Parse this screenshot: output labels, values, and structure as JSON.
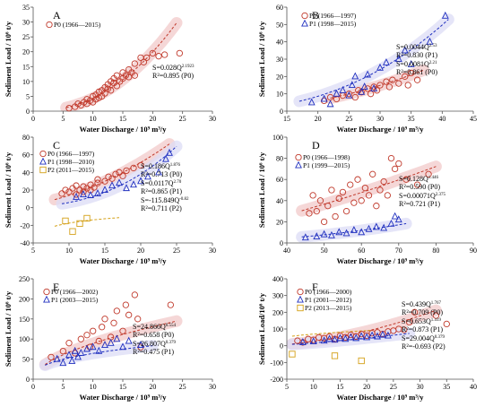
{
  "colors": {
    "p0": "#c0392b",
    "p1": "#1f2fbf",
    "p2": "#d4a017",
    "band_p0": "#f2c9c9",
    "band_p1": "#dcdcf5",
    "axis": "#555555"
  },
  "chart_data": [
    {
      "id": "A",
      "type": "scatter",
      "letter": "A",
      "xlabel": "Water Discharge / 10⁹ m³/y",
      "ylabel": "Sediment Load / 10⁶ t/y",
      "xlim": [
        0,
        30
      ],
      "ylim": [
        0,
        35
      ],
      "xticks": [
        "0",
        "5",
        "10",
        "15",
        "20",
        "25",
        "30"
      ],
      "yticks": [
        "0",
        "5",
        "10",
        "15",
        "20",
        "25",
        "30",
        "35"
      ],
      "xtick_values": [
        0,
        5,
        10,
        15,
        20,
        25,
        30
      ],
      "ytick_values": [
        0,
        5,
        10,
        15,
        20,
        25,
        30,
        35
      ],
      "legend": [
        {
          "label": "P0 (1966—2015)",
          "marker": "circle",
          "color": "p0"
        }
      ],
      "equations": [
        {
          "base": "S=0.028Q",
          "exp": "2.1923",
          "r2": "R²=0.895 (P0)"
        }
      ],
      "series": [
        {
          "name": "P0",
          "marker": "circle",
          "color": "p0",
          "coef": 0.028,
          "exp": 2.1923,
          "fit_x": [
            5.5,
            24
          ],
          "x": [
            6,
            7,
            7.5,
            8,
            8.5,
            9,
            9,
            9.5,
            10,
            10,
            10.5,
            10.5,
            11,
            11,
            11.5,
            11.5,
            12,
            12,
            12.5,
            12.5,
            13,
            13,
            13.5,
            13.5,
            14,
            14,
            14.5,
            15,
            15,
            15.5,
            16,
            16,
            16.5,
            17,
            17,
            18,
            18.5,
            19,
            20,
            21,
            22,
            24.5
          ],
          "y": [
            1,
            1.5,
            2.5,
            2,
            3,
            2.5,
            4,
            3.5,
            5,
            3,
            5.5,
            4,
            4.5,
            6.5,
            5,
            7,
            6,
            8,
            7.5,
            9,
            7,
            10,
            9.5,
            11,
            8.5,
            12,
            10,
            11,
            13,
            12,
            11.5,
            14,
            13,
            12,
            16,
            18,
            16.5,
            18,
            19.5,
            18.5,
            19,
            19.5
          ]
        }
      ]
    },
    {
      "id": "B",
      "type": "scatter",
      "letter": "B",
      "xlabel": "Water Discharge / 10⁹ m³/y",
      "ylabel": "Sediment Load / 10⁶ t/y",
      "xlim": [
        15,
        45
      ],
      "ylim": [
        0,
        60
      ],
      "xticks": [
        "15",
        "20",
        "25",
        "30",
        "35",
        "40",
        "45"
      ],
      "yticks": [
        "0",
        "10",
        "20",
        "30",
        "40",
        "50",
        "60"
      ],
      "xtick_values": [
        15,
        20,
        25,
        30,
        35,
        40,
        45
      ],
      "ytick_values": [
        0,
        10,
        20,
        30,
        40,
        50,
        60
      ],
      "legend": [
        {
          "label": "P0 (1966—1997)",
          "marker": "circle",
          "color": "p0"
        },
        {
          "label": "P1 (1998—2015)",
          "marker": "triangle",
          "color": "p1"
        }
      ],
      "equations": [
        {
          "base": "S=0.0044Q",
          "exp": "2.53",
          "r2": "R²=0.830 (P1)"
        },
        {
          "base": "S=0.0081Q",
          "exp": "2.21",
          "r2": "R²=0.861 (P0)"
        }
      ],
      "series": [
        {
          "name": "P0",
          "marker": "circle",
          "color": "p0",
          "coef": 0.0081,
          "exp": 2.21,
          "fit_x": [
            22,
            37
          ],
          "x": [
            21,
            22,
            23,
            24,
            25,
            26,
            26.5,
            27,
            28,
            28.5,
            29,
            29.5,
            30,
            31,
            31.5,
            32,
            33,
            34,
            34.5,
            35,
            36
          ],
          "y": [
            6,
            8,
            7,
            9,
            10,
            8,
            12,
            11,
            13,
            10,
            14,
            12,
            15,
            17,
            14,
            18,
            16,
            20,
            15,
            22,
            18
          ]
        },
        {
          "name": "P1",
          "marker": "triangle",
          "color": "p1",
          "coef": 0.0044,
          "exp": 2.53,
          "fit_x": [
            17,
            41
          ],
          "x": [
            19,
            21,
            22,
            23,
            24,
            25,
            25.5,
            26,
            27,
            27.5,
            28,
            29,
            30,
            31,
            33,
            34,
            35,
            38,
            40.5
          ],
          "y": [
            5,
            7,
            4,
            10,
            12,
            9,
            15,
            20,
            11,
            14,
            21,
            13,
            25,
            28,
            30,
            35,
            27,
            40,
            55
          ]
        }
      ]
    },
    {
      "id": "C",
      "type": "scatter",
      "letter": "C",
      "xlabel": "Water Discharge / 10⁹ m³/y",
      "ylabel": "Sediment Load / 10⁶ t/y",
      "xlim": [
        5,
        30
      ],
      "ylim": [
        -40,
        80
      ],
      "xticks": [
        "5",
        "10",
        "15",
        "20",
        "25",
        "30"
      ],
      "yticks": [
        "-40",
        "-20",
        "0",
        "20",
        "40",
        "60",
        "80"
      ],
      "xtick_values": [
        5,
        10,
        15,
        20,
        25,
        30
      ],
      "ytick_values": [
        -40,
        -20,
        0,
        20,
        40,
        60,
        80
      ],
      "legend": [
        {
          "label": "P0 (1966—1997)",
          "marker": "circle",
          "color": "p0"
        },
        {
          "label": "P1 (1998—2010)",
          "marker": "triangle",
          "color": "p1"
        },
        {
          "label": "P2 (2011—2015)",
          "marker": "square",
          "color": "p2"
        }
      ],
      "equations": [
        {
          "base": "S=0.186Q",
          "exp": "1.876",
          "r2": "R²=0.713 (P0)"
        },
        {
          "base": "S=0.0117Q",
          "exp": "2.70",
          "r2": "R²=0.865 (P1)"
        },
        {
          "base": "S=-115.849Q",
          "exp": "-0.82",
          "r2": "R²=0.711 (P2)"
        }
      ],
      "series": [
        {
          "name": "P0",
          "marker": "circle",
          "color": "p0",
          "coef": 0.186,
          "exp": 1.876,
          "fit_x": [
            8,
            24
          ],
          "x": [
            9,
            9.5,
            10,
            10.5,
            11,
            11,
            11.5,
            12,
            12,
            12.5,
            13,
            13,
            13.5,
            14,
            14,
            15,
            15.5,
            16,
            16.5,
            17,
            17.5,
            18,
            19,
            20
          ],
          "y": [
            16,
            20,
            18,
            22,
            15,
            25,
            20,
            24,
            18,
            22,
            26,
            20,
            23,
            28,
            32,
            30,
            35,
            33,
            38,
            40,
            36,
            42,
            45,
            48
          ]
        },
        {
          "name": "P1",
          "marker": "triangle",
          "color": "p1",
          "coef": 0.0117,
          "exp": 2.7,
          "fit_x": [
            9,
            25
          ],
          "x": [
            11,
            12,
            13,
            14,
            15,
            16,
            17,
            18,
            19,
            20,
            21,
            22.5,
            23.5,
            24
          ],
          "y": [
            12,
            15,
            14,
            16,
            20,
            25,
            28,
            22,
            26,
            30,
            35,
            40,
            55,
            62
          ]
        },
        {
          "name": "P2",
          "marker": "square",
          "color": "p2",
          "coef": -115.849,
          "exp": -0.82,
          "fit_x": [
            8,
            17
          ],
          "x": [
            9.5,
            10.5,
            11.5,
            12.5
          ],
          "y": [
            -15,
            -27,
            -18,
            -12
          ]
        }
      ]
    },
    {
      "id": "D",
      "type": "scatter",
      "letter": "D",
      "xlabel": "Water Discharge / 10⁹ m³/y",
      "ylabel": "Sediment Load / 10⁶ t/y",
      "xlim": [
        40,
        90
      ],
      "ylim": [
        0,
        100
      ],
      "xticks": [
        "40",
        "50",
        "60",
        "70",
        "80",
        "90"
      ],
      "yticks": [
        "0",
        "20",
        "40",
        "60",
        "80",
        "100"
      ],
      "xtick_values": [
        40,
        50,
        60,
        70,
        80,
        90
      ],
      "ytick_values": [
        0,
        20,
        40,
        60,
        80,
        100
      ],
      "legend": [
        {
          "label": "P0 (1966—1998)",
          "marker": "circle",
          "color": "p0"
        },
        {
          "label": "P1 (1999—2015)",
          "marker": "triangle",
          "color": "p1"
        }
      ],
      "equations": [
        {
          "base": "S=0.128Q",
          "exp": "1.446",
          "r2": "R²=0.590 (P0)"
        },
        {
          "base": "S=0.00071Q",
          "exp": "2.375",
          "r2": "R²=0.721 (P1)"
        }
      ],
      "series": [
        {
          "name": "P0",
          "marker": "circle",
          "color": "p0",
          "coef": 0.128,
          "exp": 1.446,
          "fit_x": [
            44,
            80
          ],
          "x": [
            46,
            47,
            48,
            49,
            50,
            51,
            52,
            53,
            54,
            55,
            56,
            57,
            58,
            59,
            60,
            61,
            62,
            63,
            64,
            65,
            66,
            67,
            68,
            69,
            70,
            72,
            75,
            78
          ],
          "y": [
            28,
            45,
            30,
            40,
            20,
            35,
            50,
            25,
            42,
            48,
            30,
            55,
            38,
            60,
            40,
            52,
            45,
            65,
            35,
            50,
            58,
            45,
            80,
            70,
            75,
            60,
            55,
            65
          ]
        },
        {
          "name": "P1",
          "marker": "triangle",
          "color": "p1",
          "coef": 0.00071,
          "exp": 2.375,
          "fit_x": [
            44,
            72
          ],
          "x": [
            45,
            48,
            50,
            52,
            54,
            56,
            58,
            60,
            62,
            64,
            66,
            68,
            69,
            70
          ],
          "y": [
            5,
            6,
            8,
            7,
            10,
            9,
            12,
            10,
            13,
            15,
            14,
            18,
            25,
            22
          ]
        }
      ]
    },
    {
      "id": "E",
      "type": "scatter",
      "letter": "E",
      "xlabel": "Water Discharge / 10⁹ m³/y",
      "ylabel": "Sediment Load / 10⁶ t/y",
      "xlim": [
        0,
        30
      ],
      "ylim": [
        0,
        250
      ],
      "xticks": [
        "0",
        "5",
        "10",
        "15",
        "20",
        "25",
        "30"
      ],
      "yticks": [
        "0",
        "50",
        "100",
        "150",
        "200",
        "250"
      ],
      "xtick_values": [
        0,
        5,
        10,
        15,
        20,
        25,
        30
      ],
      "ytick_values": [
        0,
        50,
        100,
        150,
        200,
        250
      ],
      "legend": [
        {
          "label": "P0 (1966—2002)",
          "marker": "circle",
          "color": "p0"
        },
        {
          "label": "P1 (2003—2015)",
          "marker": "triangle",
          "color": "p1"
        }
      ],
      "equations": [
        {
          "base": "S=24.866Q",
          "exp": "0.554",
          "r2": "R²=0.658 (P0)"
        },
        {
          "base": "S=26.807Q",
          "exp": "0.379",
          "r2": "R²=0.475 (P1)"
        }
      ],
      "series": [
        {
          "name": "P0",
          "marker": "circle",
          "color": "p0",
          "coef": 24.866,
          "exp": 0.554,
          "fit_x": [
            2,
            24
          ],
          "x": [
            3,
            5,
            6,
            7,
            8,
            9,
            9.5,
            10,
            11,
            11.5,
            12,
            13,
            13.5,
            14,
            15,
            15.5,
            16,
            17,
            17.5,
            18,
            23
          ],
          "y": [
            55,
            70,
            90,
            65,
            100,
            110,
            80,
            120,
            95,
            130,
            150,
            105,
            140,
            170,
            120,
            185,
            160,
            210,
            150,
            80,
            185
          ]
        },
        {
          "name": "P1",
          "marker": "triangle",
          "color": "p1",
          "coef": 26.807,
          "exp": 0.379,
          "fit_x": [
            2,
            20
          ],
          "x": [
            4,
            5,
            6,
            6.5,
            7,
            7.5,
            8,
            9,
            10,
            11,
            12,
            13,
            14,
            15,
            16,
            18
          ],
          "y": [
            50,
            40,
            60,
            45,
            70,
            55,
            65,
            75,
            80,
            70,
            85,
            90,
            100,
            80,
            95,
            85
          ]
        }
      ]
    },
    {
      "id": "F",
      "type": "scatter",
      "letter": "F",
      "xlabel": "Water Discharge / 10⁹ m³/y",
      "ylabel": "Sediment Load/10⁶ t/y",
      "xlim": [
        5,
        40
      ],
      "ylim": [
        -200,
        400
      ],
      "xticks": [
        "5",
        "10",
        "15",
        "20",
        "25",
        "30",
        "35",
        "40"
      ],
      "yticks": [
        "-200",
        "-100",
        "0",
        "100",
        "200",
        "300",
        "400"
      ],
      "xtick_values": [
        5,
        10,
        15,
        20,
        25,
        30,
        35,
        40
      ],
      "ytick_values": [
        -200,
        -100,
        0,
        100,
        200,
        300,
        400
      ],
      "legend": [
        {
          "label": "P0 (1966—2000)",
          "marker": "circle",
          "color": "p0"
        },
        {
          "label": "P1 (2001—2012)",
          "marker": "triangle",
          "color": "p1"
        },
        {
          "label": "P2 (2013—2015)",
          "marker": "square",
          "color": "p2"
        }
      ],
      "equations": [
        {
          "base": "S=0.439Q",
          "exp": "1.767",
          "r2": "R²=0.709 (P0)"
        },
        {
          "base": "S=0.653Q",
          "exp": "1.419",
          "r2": "R²=0.873 (P1)"
        },
        {
          "base": "S=29.004Q",
          "exp": "0.379",
          "r2": "R²=-0.693 (P2)"
        }
      ],
      "series": [
        {
          "name": "P0",
          "marker": "circle",
          "color": "p0",
          "coef": 0.439,
          "exp": 1.767,
          "fit_x": [
            6,
            33
          ],
          "x": [
            7,
            8,
            9,
            10,
            11,
            12,
            13,
            14,
            15,
            16,
            17,
            18,
            19,
            20,
            21,
            22,
            23,
            24,
            25,
            26,
            27,
            28,
            29,
            33,
            35
          ],
          "y": [
            30,
            20,
            40,
            35,
            50,
            45,
            55,
            40,
            60,
            50,
            65,
            55,
            70,
            60,
            75,
            80,
            70,
            85,
            90,
            100,
            95,
            140,
            200,
            180,
            130
          ]
        },
        {
          "name": "P1",
          "marker": "triangle",
          "color": "p1",
          "coef": 0.653,
          "exp": 1.419,
          "fit_x": [
            6,
            28
          ],
          "x": [
            8,
            10,
            12,
            13,
            14,
            15,
            16,
            17,
            18,
            19,
            20,
            21,
            22,
            23,
            24
          ],
          "y": [
            20,
            25,
            30,
            40,
            35,
            45,
            40,
            50,
            45,
            55,
            50,
            60,
            55,
            65,
            60
          ]
        },
        {
          "name": "P2",
          "marker": "square",
          "color": "p2",
          "coef": 29.004,
          "exp": 0.379,
          "fit_x": [
            6,
            21
          ],
          "x": [
            6,
            14,
            19
          ],
          "y": [
            -50,
            -60,
            -90
          ]
        }
      ]
    }
  ]
}
